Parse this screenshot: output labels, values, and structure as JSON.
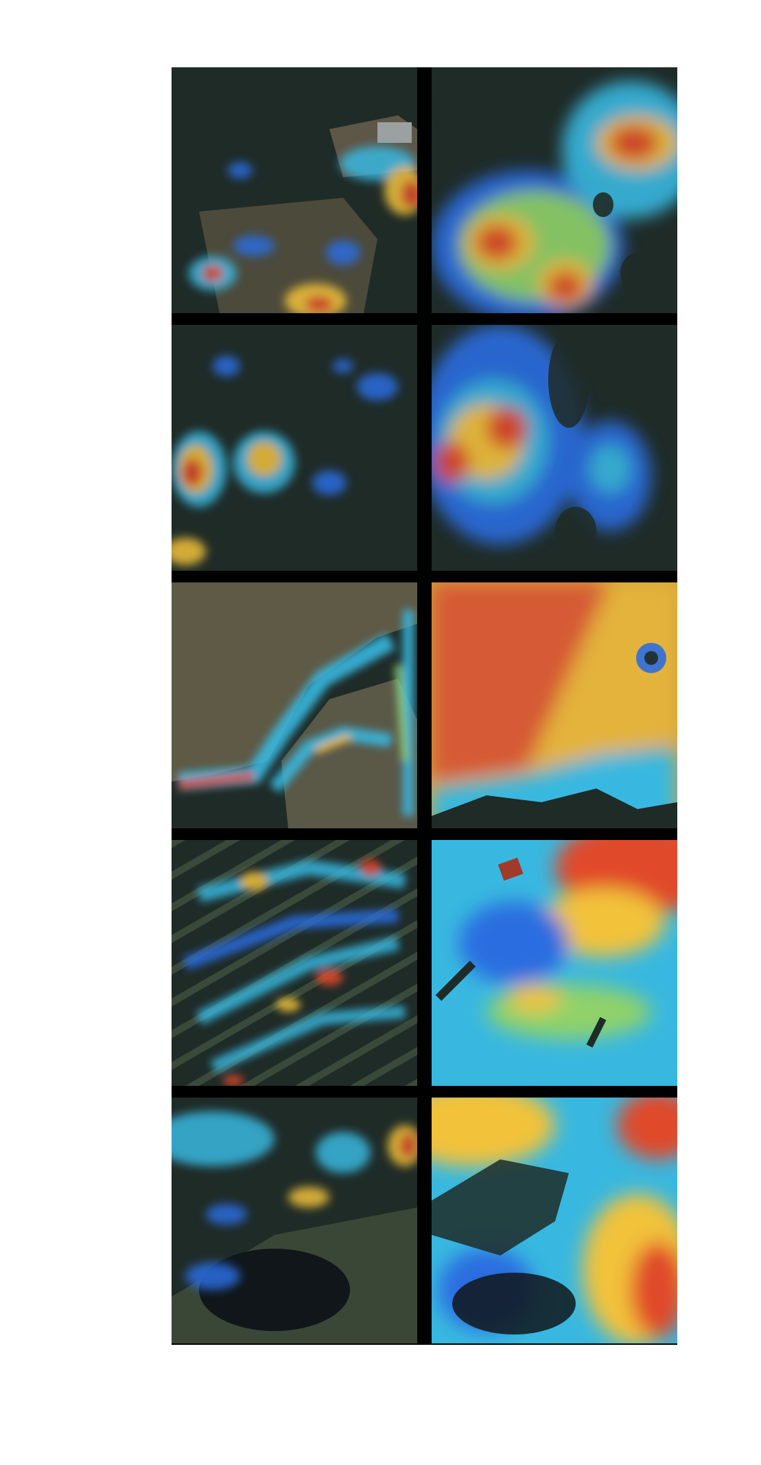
{
  "figure": {
    "rows": 5,
    "columns": 2,
    "separator_color": "#000000",
    "background_color": "#ffffff"
  },
  "tiles": [
    {
      "row": 1,
      "column": 1,
      "scene": "aerial-forest-with-building",
      "overlay": "sparse-heatmap"
    },
    {
      "row": 1,
      "column": 2,
      "scene": "aerial-forest-with-building",
      "overlay": "dense-heatmap"
    },
    {
      "row": 2,
      "column": 1,
      "scene": "aerial-dense-forest",
      "overlay": "sparse-heatmap"
    },
    {
      "row": 2,
      "column": 2,
      "scene": "aerial-dense-forest",
      "overlay": "dense-heatmap"
    },
    {
      "row": 3,
      "column": 1,
      "scene": "aerial-field-and-forest-edge",
      "overlay": "sparse-heatmap"
    },
    {
      "row": 3,
      "column": 2,
      "scene": "aerial-field-and-forest-edge",
      "overlay": "dense-heatmap"
    },
    {
      "row": 4,
      "column": 1,
      "scene": "aerial-orchard-rows",
      "overlay": "sparse-heatmap"
    },
    {
      "row": 4,
      "column": 2,
      "scene": "aerial-orchard-rows",
      "overlay": "dense-heatmap"
    },
    {
      "row": 5,
      "column": 1,
      "scene": "aerial-forest-with-pond",
      "overlay": "sparse-heatmap"
    },
    {
      "row": 5,
      "column": 2,
      "scene": "aerial-forest-with-pond",
      "overlay": "dense-heatmap"
    }
  ],
  "colors": {
    "forest": "#1f2b27",
    "field": "#5f5a45",
    "heat_low": "#2c6de0",
    "heat_mid_low": "#38b8e0",
    "heat_mid": "#8fd26a",
    "heat_mid_high": "#f2c23a",
    "heat_high": "#e04a2c"
  }
}
